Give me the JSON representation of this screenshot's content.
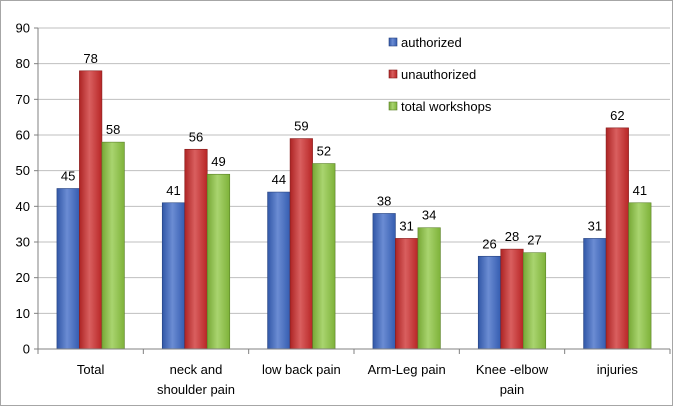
{
  "chart_data": {
    "type": "bar",
    "categories": [
      [
        "Total"
      ],
      [
        "neck  and",
        "shoulder pain"
      ],
      [
        "low back pain"
      ],
      [
        "Arm-Leg pain"
      ],
      [
        "Knee -elbow",
        "pain"
      ],
      [
        "injuries"
      ]
    ],
    "series": [
      {
        "name": "authorized",
        "color": "#3a66c4",
        "values": [
          45,
          41,
          44,
          38,
          26,
          31
        ]
      },
      {
        "name": "unauthorized",
        "color": "#cc2a2a",
        "values": [
          78,
          56,
          59,
          31,
          28,
          62
        ]
      },
      {
        "name": "total workshops",
        "color": "#8cc63f",
        "values": [
          58,
          49,
          52,
          34,
          27,
          41
        ]
      }
    ],
    "ylim": [
      0,
      90
    ],
    "yticks": [
      0,
      10,
      20,
      30,
      40,
      50,
      60,
      70,
      80,
      90
    ],
    "grid": true,
    "legend": "top-right",
    "data_labels": true
  }
}
